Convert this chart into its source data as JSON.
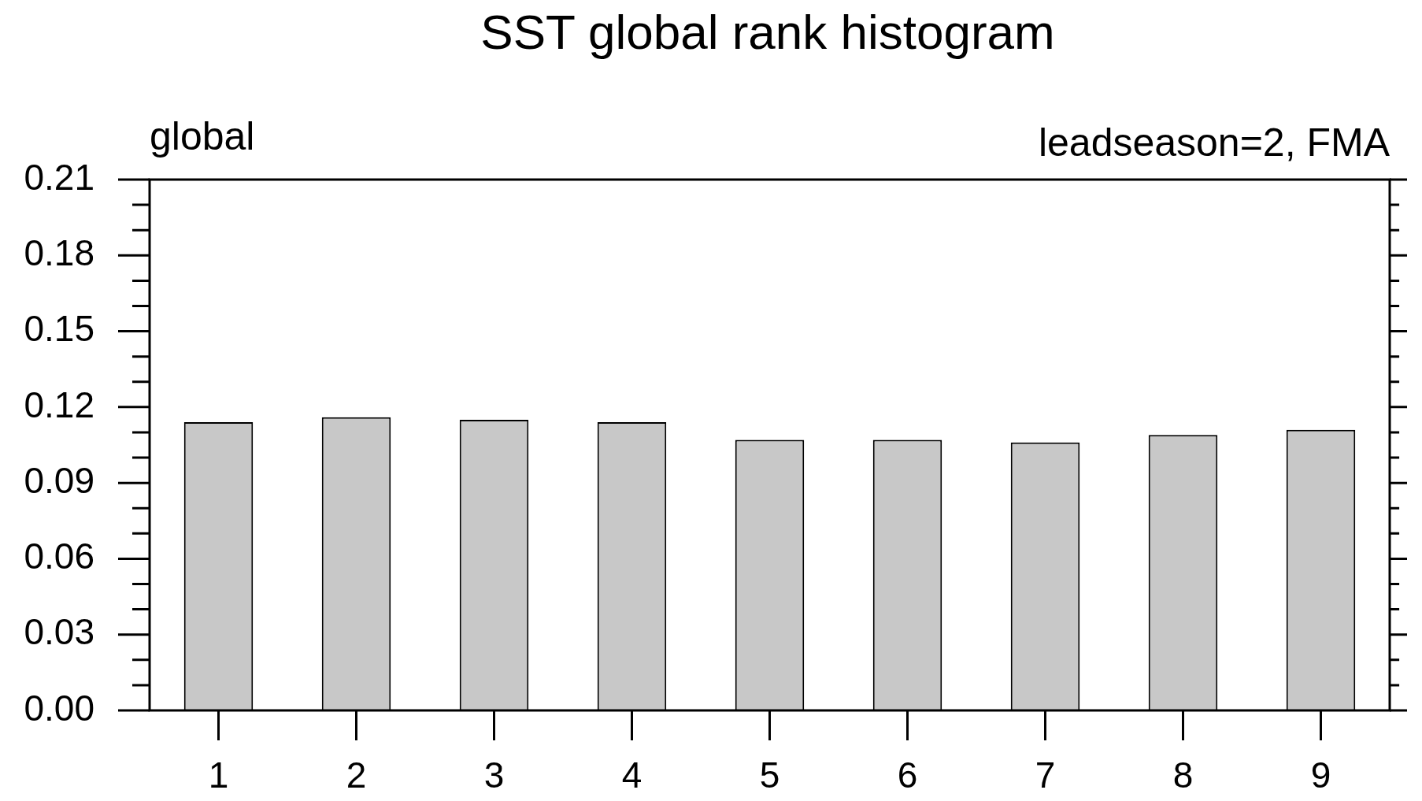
{
  "chart_data": {
    "type": "bar",
    "title": "SST global rank histogram",
    "annotations": [
      "global",
      "leadseason=2, FMA"
    ],
    "categories": [
      "1",
      "2",
      "3",
      "4",
      "5",
      "6",
      "7",
      "8",
      "9"
    ],
    "values": [
      0.114,
      0.116,
      0.115,
      0.114,
      0.107,
      0.107,
      0.106,
      0.109,
      0.111
    ],
    "color": "#c8c8c8",
    "ylim": [
      0,
      0.21
    ],
    "yticks": [
      {
        "value": 0,
        "label": "0.00"
      },
      {
        "value": 0.01,
        "label": null
      },
      {
        "value": 0.02,
        "label": null
      },
      {
        "value": 0.03,
        "label": "0.03"
      },
      {
        "value": 0.04,
        "label": null
      },
      {
        "value": 0.05,
        "label": null
      },
      {
        "value": 0.06,
        "label": "0.06"
      },
      {
        "value": 0.07,
        "label": null
      },
      {
        "value": 0.08,
        "label": null
      },
      {
        "value": 0.09,
        "label": "0.09"
      },
      {
        "value": 0.1,
        "label": null
      },
      {
        "value": 0.11,
        "label": null
      },
      {
        "value": 0.12,
        "label": "0.12"
      },
      {
        "value": 0.13,
        "label": null
      },
      {
        "value": 0.14,
        "label": null
      },
      {
        "value": 0.15,
        "label": "0.15"
      },
      {
        "value": 0.16,
        "label": null
      },
      {
        "value": 0.17,
        "label": null
      },
      {
        "value": 0.18,
        "label": "0.18"
      },
      {
        "value": 0.19,
        "label": null
      },
      {
        "value": 0.2,
        "label": null
      },
      {
        "value": 0.21,
        "label": "0.21"
      }
    ],
    "grid": false,
    "legend": false
  }
}
